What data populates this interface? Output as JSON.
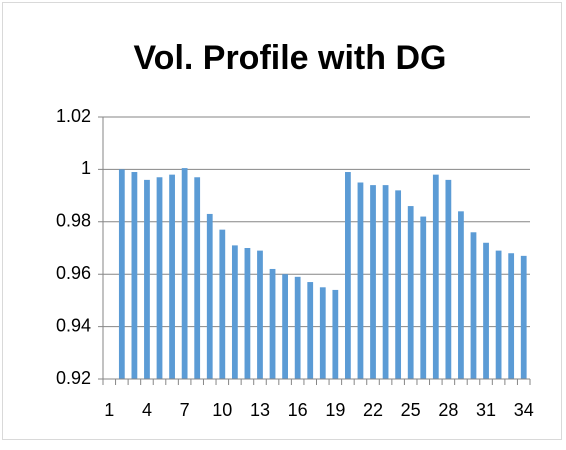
{
  "chart_data": {
    "type": "bar",
    "title": "Vol. Profile with DG",
    "categories": [
      "1",
      null,
      null,
      "4",
      null,
      null,
      "7",
      null,
      null,
      "10",
      null,
      null,
      "13",
      null,
      null,
      "16",
      null,
      null,
      "19",
      null,
      null,
      "22",
      null,
      null,
      "25",
      null,
      null,
      "28",
      null,
      null,
      "31",
      null,
      null,
      "34"
    ],
    "values": [
      null,
      1.0,
      0.999,
      0.996,
      0.997,
      0.998,
      1.0005,
      0.997,
      0.983,
      0.977,
      0.971,
      0.97,
      0.969,
      0.962,
      0.96,
      0.959,
      0.957,
      0.955,
      0.954,
      0.999,
      0.995,
      0.994,
      0.994,
      0.992,
      0.986,
      0.982,
      0.998,
      0.996,
      0.984,
      0.976,
      0.972,
      0.969,
      0.968,
      0.967
    ],
    "color": "#5b9bd5",
    "ylim": [
      0.92,
      1.02
    ],
    "yticks": [
      0.92,
      0.94,
      0.96,
      0.98,
      1,
      1.02
    ],
    "grid": true
  }
}
